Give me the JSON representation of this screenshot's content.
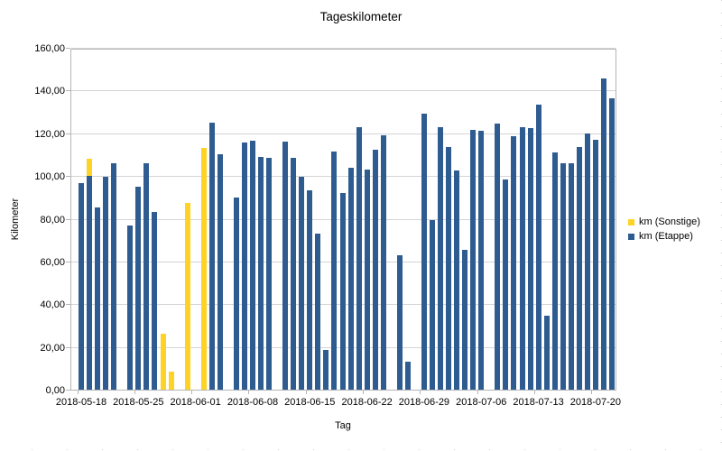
{
  "chart_data": {
    "type": "bar",
    "stacked": true,
    "orientation": "vertical",
    "title": "Tageskilometer",
    "xlabel": "Tag",
    "ylabel": "Kilometer",
    "ylim": [
      0,
      160
    ],
    "y_tick_step": 20,
    "y_tick_labels": [
      "0,00",
      "20,00",
      "40,00",
      "60,00",
      "80,00",
      "100,00",
      "120,00",
      "140,00",
      "160,00"
    ],
    "x_tick_labels": [
      "2018-05-18",
      "2018-05-25",
      "2018-06-01",
      "2018-06-08",
      "2018-06-15",
      "2018-06-22",
      "2018-06-29",
      "2018-07-06",
      "2018-07-13",
      "2018-07-20"
    ],
    "x_tick_interval_days": 7,
    "grid": "horizontal-only",
    "legend_position": "right",
    "series": [
      {
        "name": "km (Sonstige)",
        "color": "#ffd226"
      },
      {
        "name": "km (Etappe)",
        "color": "#2e5c90"
      }
    ],
    "days": [
      {
        "date": "2018-05-18",
        "etappe": 96.5,
        "sonstige": 0
      },
      {
        "date": "2018-05-19",
        "etappe": 100,
        "sonstige": 8
      },
      {
        "date": "2018-05-20",
        "etappe": 85.5,
        "sonstige": 0
      },
      {
        "date": "2018-05-21",
        "etappe": 99.5,
        "sonstige": 0
      },
      {
        "date": "2018-05-22",
        "etappe": 106,
        "sonstige": 0
      },
      {
        "date": "2018-05-23",
        "etappe": 0,
        "sonstige": 0
      },
      {
        "date": "2018-05-24",
        "etappe": 77,
        "sonstige": 0
      },
      {
        "date": "2018-05-25",
        "etappe": 95,
        "sonstige": 0
      },
      {
        "date": "2018-05-26",
        "etappe": 106,
        "sonstige": 0
      },
      {
        "date": "2018-05-27",
        "etappe": 83,
        "sonstige": 0
      },
      {
        "date": "2018-05-28",
        "etappe": 0,
        "sonstige": 26
      },
      {
        "date": "2018-05-29",
        "etappe": 0,
        "sonstige": 8.5
      },
      {
        "date": "2018-05-30",
        "etappe": 0,
        "sonstige": 0
      },
      {
        "date": "2018-05-31",
        "etappe": 0,
        "sonstige": 87.5
      },
      {
        "date": "2018-06-01",
        "etappe": 0,
        "sonstige": 0
      },
      {
        "date": "2018-06-02",
        "etappe": 0,
        "sonstige": 113
      },
      {
        "date": "2018-06-03",
        "etappe": 125,
        "sonstige": 0
      },
      {
        "date": "2018-06-04",
        "etappe": 110,
        "sonstige": 0
      },
      {
        "date": "2018-06-05",
        "etappe": 0,
        "sonstige": 0
      },
      {
        "date": "2018-06-06",
        "etappe": 90,
        "sonstige": 0
      },
      {
        "date": "2018-06-07",
        "etappe": 115.5,
        "sonstige": 0
      },
      {
        "date": "2018-06-08",
        "etappe": 116.5,
        "sonstige": 0
      },
      {
        "date": "2018-06-09",
        "etappe": 109,
        "sonstige": 0
      },
      {
        "date": "2018-06-10",
        "etappe": 108.5,
        "sonstige": 0
      },
      {
        "date": "2018-06-11",
        "etappe": 0,
        "sonstige": 0
      },
      {
        "date": "2018-06-12",
        "etappe": 116,
        "sonstige": 0
      },
      {
        "date": "2018-06-13",
        "etappe": 108.5,
        "sonstige": 0
      },
      {
        "date": "2018-06-14",
        "etappe": 99.5,
        "sonstige": 0
      },
      {
        "date": "2018-06-15",
        "etappe": 93.5,
        "sonstige": 0
      },
      {
        "date": "2018-06-16",
        "etappe": 73,
        "sonstige": 0
      },
      {
        "date": "2018-06-17",
        "etappe": 18.5,
        "sonstige": 0
      },
      {
        "date": "2018-06-18",
        "etappe": 111.5,
        "sonstige": 0
      },
      {
        "date": "2018-06-19",
        "etappe": 92,
        "sonstige": 0
      },
      {
        "date": "2018-06-20",
        "etappe": 104,
        "sonstige": 0
      },
      {
        "date": "2018-06-21",
        "etappe": 123,
        "sonstige": 0
      },
      {
        "date": "2018-06-22",
        "etappe": 103,
        "sonstige": 0
      },
      {
        "date": "2018-06-23",
        "etappe": 112.5,
        "sonstige": 0
      },
      {
        "date": "2018-06-24",
        "etappe": 119,
        "sonstige": 0
      },
      {
        "date": "2018-06-25",
        "etappe": 0,
        "sonstige": 0
      },
      {
        "date": "2018-06-26",
        "etappe": 63,
        "sonstige": 0
      },
      {
        "date": "2018-06-27",
        "etappe": 13,
        "sonstige": 0
      },
      {
        "date": "2018-06-28",
        "etappe": 0,
        "sonstige": 0
      },
      {
        "date": "2018-06-29",
        "etappe": 129,
        "sonstige": 0
      },
      {
        "date": "2018-06-30",
        "etappe": 79.5,
        "sonstige": 0
      },
      {
        "date": "2018-07-01",
        "etappe": 123,
        "sonstige": 0
      },
      {
        "date": "2018-07-02",
        "etappe": 113.5,
        "sonstige": 0
      },
      {
        "date": "2018-07-03",
        "etappe": 102.5,
        "sonstige": 0
      },
      {
        "date": "2018-07-04",
        "etappe": 65.5,
        "sonstige": 0
      },
      {
        "date": "2018-07-05",
        "etappe": 121.5,
        "sonstige": 0
      },
      {
        "date": "2018-07-06",
        "etappe": 121,
        "sonstige": 0
      },
      {
        "date": "2018-07-07",
        "etappe": 0,
        "sonstige": 0
      },
      {
        "date": "2018-07-08",
        "etappe": 124.5,
        "sonstige": 0
      },
      {
        "date": "2018-07-09",
        "etappe": 98.5,
        "sonstige": 0
      },
      {
        "date": "2018-07-10",
        "etappe": 118.5,
        "sonstige": 0
      },
      {
        "date": "2018-07-11",
        "etappe": 123,
        "sonstige": 0
      },
      {
        "date": "2018-07-12",
        "etappe": 122.5,
        "sonstige": 0
      },
      {
        "date": "2018-07-13",
        "etappe": 133.5,
        "sonstige": 0
      },
      {
        "date": "2018-07-14",
        "etappe": 34.5,
        "sonstige": 0
      },
      {
        "date": "2018-07-15",
        "etappe": 111,
        "sonstige": 0
      },
      {
        "date": "2018-07-16",
        "etappe": 106,
        "sonstige": 0
      },
      {
        "date": "2018-07-17",
        "etappe": 106,
        "sonstige": 0
      },
      {
        "date": "2018-07-18",
        "etappe": 113.5,
        "sonstige": 0
      },
      {
        "date": "2018-07-19",
        "etappe": 120,
        "sonstige": 0
      },
      {
        "date": "2018-07-20",
        "etappe": 117,
        "sonstige": 0
      },
      {
        "date": "2018-07-21",
        "etappe": 145.5,
        "sonstige": 0
      },
      {
        "date": "2018-07-22",
        "etappe": 136.5,
        "sonstige": 0
      }
    ]
  }
}
